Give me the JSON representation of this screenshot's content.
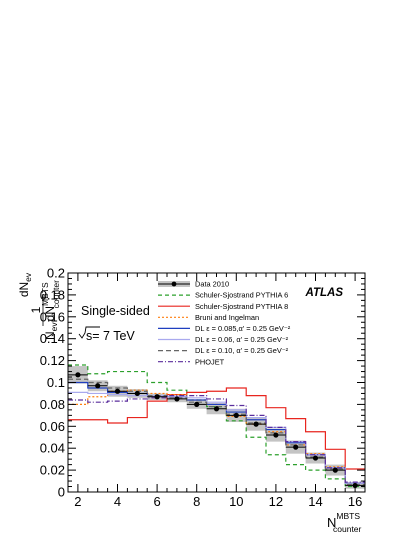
{
  "chart_data": {
    "type": "line",
    "y_axis": {
      "numerator": "dN",
      "numerator_sub": "ev",
      "denominator_n": "N",
      "denominator_n_sub": "ev",
      "denominator_d": "dN",
      "denominator_d_sup": "MBTS",
      "denominator_d_sub": "counter",
      "one": "1",
      "range": [
        0,
        0.2
      ],
      "ticks": [
        0,
        0.02,
        0.04,
        0.06,
        0.08,
        0.1,
        0.12,
        0.14,
        0.16,
        0.18,
        0.2
      ],
      "tick_labels": [
        "0",
        "0.02",
        "0.04",
        "0.06",
        "0.08",
        "0.1",
        "0.12",
        "0.14",
        "0.16",
        "0.18",
        "0.2"
      ]
    },
    "x_axis": {
      "label": "N",
      "label_sup": "MBTS",
      "label_sub": "counter",
      "range": [
        1.5,
        16.5
      ],
      "ticks": [
        2,
        4,
        6,
        8,
        10,
        12,
        14,
        16
      ],
      "tick_labels": [
        "2",
        "4",
        "6",
        "8",
        "10",
        "12",
        "14",
        "16"
      ]
    },
    "annotations": {
      "brand": "ATLAS",
      "selection": "Single-sided",
      "energy_prefix": "s= 7 TeV"
    },
    "bin_edges": [
      1.5,
      2.5,
      3.5,
      4.5,
      5.5,
      6.5,
      7.5,
      8.5,
      9.5,
      10.5,
      11.5,
      12.5,
      13.5,
      14.5,
      15.5,
      16.5
    ],
    "data": {
      "name": "Data 2010",
      "x": [
        2,
        3,
        4,
        5,
        6,
        7,
        8,
        9,
        10,
        11,
        12,
        13,
        14,
        15,
        16
      ],
      "y": [
        0.107,
        0.097,
        0.092,
        0.09,
        0.087,
        0.085,
        0.08,
        0.076,
        0.07,
        0.062,
        0.052,
        0.041,
        0.031,
        0.02,
        0.006
      ],
      "band": [
        0.008,
        0.005,
        0.005,
        0.004,
        0.003,
        0.003,
        0.004,
        0.005,
        0.006,
        0.006,
        0.006,
        0.006,
        0.005,
        0.005,
        0.003
      ]
    },
    "series": [
      {
        "name": "Schuler-Sjostrand PYTHIA 6",
        "color": "#2ca02c",
        "dash": "4,3",
        "values": [
          0.116,
          0.108,
          0.11,
          0.11,
          0.1,
          0.093,
          0.084,
          0.078,
          0.065,
          0.05,
          0.034,
          0.025,
          0.02,
          0.012,
          0.005
        ]
      },
      {
        "name": "Schuler-Sjostrand PYTHIA 8",
        "color": "#e8251f",
        "dash": "",
        "values": [
          0.066,
          0.066,
          0.063,
          0.068,
          0.083,
          0.089,
          0.091,
          0.092,
          0.095,
          0.088,
          0.077,
          0.067,
          0.055,
          0.039,
          0.021
        ]
      },
      {
        "name": "Bruni and Ingelman",
        "color": "#ff7f0e",
        "dash": "2,2",
        "values": [
          0.08,
          0.087,
          0.092,
          0.093,
          0.09,
          0.089,
          0.084,
          0.08,
          0.069,
          0.062,
          0.055,
          0.043,
          0.035,
          0.023,
          0.008
        ]
      },
      {
        "name": "DL ε = 0.085,α' = 0.25 GeV⁻²",
        "color": "#1f3fbf",
        "dash": "",
        "values": [
          0.1,
          0.095,
          0.091,
          0.09,
          0.088,
          0.087,
          0.084,
          0.08,
          0.073,
          0.066,
          0.057,
          0.045,
          0.034,
          0.022,
          0.008
        ]
      },
      {
        "name": "DL ε = 0.06, α' = 0.25 GeV⁻²",
        "color": "#a9a9ee",
        "dash": "",
        "values": [
          0.091,
          0.09,
          0.089,
          0.088,
          0.088,
          0.087,
          0.086,
          0.082,
          0.075,
          0.068,
          0.059,
          0.046,
          0.034,
          0.022,
          0.008
        ]
      },
      {
        "name": "DL ε = 0.10, α' = 0.25 GeV⁻²",
        "color": "#666666",
        "dash": "5,3",
        "values": [
          0.103,
          0.1,
          0.095,
          0.092,
          0.088,
          0.086,
          0.082,
          0.078,
          0.071,
          0.063,
          0.054,
          0.043,
          0.032,
          0.021,
          0.007
        ]
      },
      {
        "name": "PHOJET",
        "color": "#5a2d9c",
        "dash": "5,2,1,2",
        "values": [
          0.084,
          0.082,
          0.083,
          0.085,
          0.086,
          0.088,
          0.088,
          0.085,
          0.079,
          0.07,
          0.059,
          0.046,
          0.034,
          0.022,
          0.009
        ]
      }
    ]
  }
}
